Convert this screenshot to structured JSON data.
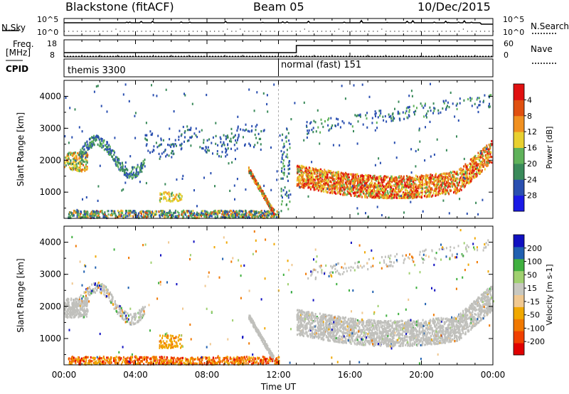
{
  "header": {
    "station": "Blackstone (fitACF)",
    "beam": "Beam 05",
    "date": "10/Dec/2015"
  },
  "noise_panel": {
    "left_label": "N.Sky",
    "left_ticks": [
      "10^5",
      "10^0"
    ],
    "right_label": "N.Search",
    "right_ticks": [
      "10^5",
      "10^0"
    ]
  },
  "freq_panel": {
    "left_label_1": "Freq.",
    "left_label_2": "[MHz]",
    "left_ticks": [
      "18",
      "8"
    ],
    "right_label": "Nave",
    "right_ticks": [
      "60",
      "0"
    ]
  },
  "cpid_panel": {
    "label": "CPID",
    "segments": [
      {
        "text": "themis 3300",
        "start_hour": 0
      },
      {
        "text": "normal (fast) 151",
        "start_hour": 12
      }
    ]
  },
  "colors": {
    "power_scale": [
      "#1a1ae6",
      "#2a4fb0",
      "#3a8a5a",
      "#5fb25a",
      "#e8d030",
      "#f09020",
      "#e05010",
      "#e01010"
    ],
    "velocity_scale": [
      "#e00000",
      "#f04000",
      "#f07800",
      "#f0a800",
      "#f0c890",
      "#c8c8c0",
      "#a0d070",
      "#40b040",
      "#2060b0",
      "#1010c0"
    ],
    "ground_scatter": "#c0c0bc"
  },
  "chart_data": [
    {
      "type": "heatmap",
      "title": "Power",
      "ylabel": "Slant Range [km]",
      "xlim": [
        0,
        24
      ],
      "ylim": [
        180,
        4500
      ],
      "yticks": [
        1000,
        2000,
        3000,
        4000
      ],
      "colorbar": {
        "label": "Power [dB]",
        "range": [
          0,
          32
        ],
        "ticks": [
          "4",
          "8",
          "12",
          "16",
          "20",
          "24",
          "28"
        ]
      },
      "features": [
        {
          "name": "E-region / near range scatter",
          "x": [
            0,
            12
          ],
          "range_km": [
            200,
            450
          ],
          "power_db": [
            4,
            16
          ]
        },
        {
          "name": "morning patch",
          "x": [
            0,
            1.2
          ],
          "range_km": [
            1600,
            2200
          ],
          "power_db": [
            12,
            22
          ]
        },
        {
          "name": "sloped echo",
          "x": [
            10.3,
            11.7
          ],
          "range_km": [
            400,
            1700
          ],
          "power_db": [
            8,
            20
          ]
        },
        {
          "name": "main F-region band",
          "x": [
            13,
            24
          ],
          "range_km": [
            1000,
            2500
          ],
          "power_db": [
            12,
            30
          ]
        }
      ]
    },
    {
      "type": "heatmap",
      "title": "Velocity",
      "ylabel": "Slant Range [km]",
      "xlabel": "Time UT",
      "xlim": [
        0,
        24
      ],
      "ylim": [
        180,
        4500
      ],
      "xticks": [
        "00:00",
        "04:00",
        "08:00",
        "12:00",
        "16:00",
        "20:00",
        "00:00"
      ],
      "yticks": [
        1000,
        2000,
        3000,
        4000
      ],
      "colorbar": {
        "label": "Velocity [m s-1]",
        "range": [
          -250,
          250
        ],
        "ticks": [
          "200",
          "100",
          "50",
          "15",
          "-15",
          "-50",
          "-100",
          "-200"
        ]
      },
      "features": [
        {
          "name": "ground scatter band",
          "x": [
            13,
            24
          ],
          "range_km": [
            1000,
            2400
          ],
          "velocity": [
            -15,
            15
          ]
        },
        {
          "name": "morning ground scatter",
          "x": [
            0,
            1.2
          ],
          "range_km": [
            1600,
            2200
          ],
          "velocity": [
            -15,
            15
          ]
        },
        {
          "name": "near range echoes",
          "x": [
            0,
            12
          ],
          "range_km": [
            200,
            450
          ],
          "velocity": [
            -150,
            50
          ]
        }
      ]
    }
  ]
}
